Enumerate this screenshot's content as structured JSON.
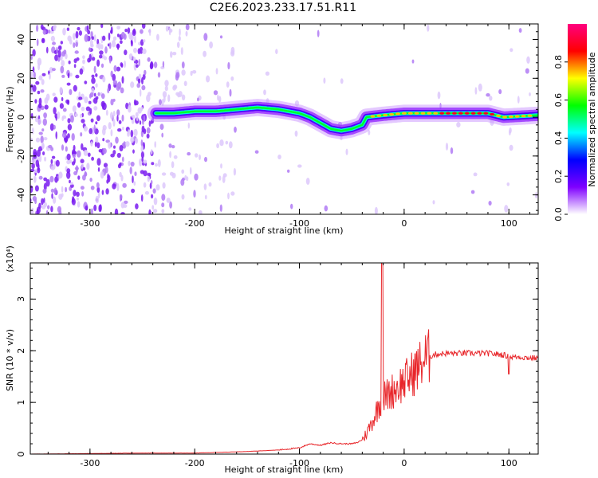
{
  "figure_title": "C2E6.2023.233.17.51.R11",
  "chart_data": [
    {
      "type": "heatmap",
      "xlabel": "Height of straight line (km)",
      "ylabel": "Frequency (Hz)",
      "xlim": [
        -357,
        128
      ],
      "ylim": [
        -50,
        48
      ],
      "x_ticks": [
        -300,
        -200,
        -100,
        0,
        100
      ],
      "y_ticks": [
        -40,
        -20,
        0,
        20,
        40
      ],
      "colorbar": {
        "label": "Normalized spectral amplitude",
        "range": [
          0,
          1
        ],
        "ticks": [
          0.0,
          0.2,
          0.4,
          0.6,
          0.8
        ],
        "colors": [
          "#ffffff",
          "#7f00ff",
          "#0000ff",
          "#00ffff",
          "#00ff00",
          "#ffff00",
          "#ff0000",
          "#ff0080"
        ]
      },
      "ridge": {
        "x": [
          -237,
          -220,
          -200,
          -180,
          -160,
          -140,
          -120,
          -100,
          -90,
          -80,
          -70,
          -60,
          -50,
          -40,
          -36,
          -20,
          0,
          40,
          80,
          95,
          128
        ],
        "y": [
          2,
          2,
          3,
          3,
          4,
          5,
          4,
          2,
          0,
          -3,
          -6,
          -7,
          -6,
          -4,
          0,
          1,
          2,
          2,
          2,
          0,
          1
        ]
      }
    },
    {
      "type": "line",
      "xlabel": "Height of straight line (km)",
      "ylabel": "SNR (10 * v/v)",
      "y_multiplier": "(x10⁴)",
      "xlim": [
        -357,
        128
      ],
      "ylim": [
        0,
        3.7
      ],
      "x_ticks": [
        -300,
        -200,
        -100,
        0,
        100
      ],
      "y_ticks": [
        0,
        1,
        2,
        3
      ],
      "line_color": "#e8262a",
      "series": [
        {
          "x": [
            -357,
            -300,
            -250,
            -200,
            -150,
            -120,
            -100,
            -90,
            -80,
            -70,
            -60,
            -50,
            -45,
            -40,
            -36,
            -30,
            -25,
            -21,
            -15,
            -10,
            0,
            10,
            20,
            30,
            40,
            60,
            80,
            95,
            100,
            110,
            120,
            128
          ],
          "y": [
            0.0,
            0.01,
            0.02,
            0.02,
            0.05,
            0.08,
            0.12,
            0.2,
            0.17,
            0.22,
            0.2,
            0.2,
            0.22,
            0.28,
            0.4,
            0.65,
            0.9,
            1.1,
            1.15,
            1.25,
            1.4,
            1.6,
            1.85,
            1.93,
            1.95,
            1.95,
            1.95,
            1.92,
            1.88,
            1.88,
            1.86,
            1.86
          ]
        }
      ],
      "annotations": [
        {
          "x": -21,
          "y": 3.7,
          "text": ""
        }
      ]
    }
  ]
}
